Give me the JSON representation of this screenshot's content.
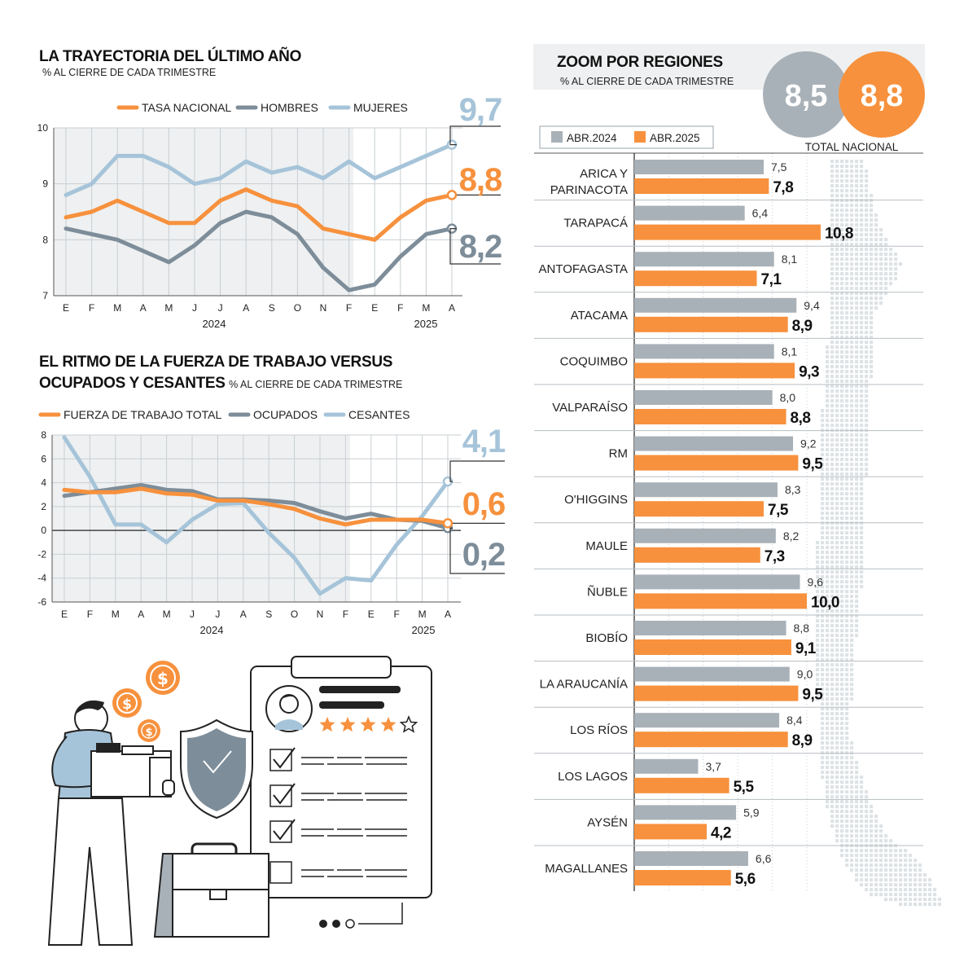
{
  "colors": {
    "orange": "#f7913d",
    "slate": "#7d8d99",
    "lightblue": "#a6c4d9",
    "gray": "#a9b1b8",
    "shade": "#eef0f1"
  },
  "chart_data": [
    {
      "type": "line",
      "title": "LA TRAYECTORIA DEL ÚLTIMO AÑO",
      "subtitle": "% AL CIERRE DE CADA TRIMESTRE",
      "categories": [
        "E",
        "F",
        "M",
        "A",
        "M",
        "J",
        "J",
        "A",
        "S",
        "O",
        "N",
        "F",
        "E",
        "F",
        "M",
        "A"
      ],
      "year_labels": [
        "2024",
        "2025"
      ],
      "ylim": [
        7,
        10
      ],
      "y_ticks": [
        "7",
        "8",
        "9",
        "10"
      ],
      "grid": true,
      "legend_position": "top",
      "series": [
        {
          "name": "TASA NACIONAL",
          "color": "#f7913d",
          "values": [
            8.4,
            8.5,
            8.7,
            8.5,
            8.3,
            8.3,
            8.7,
            8.9,
            8.7,
            8.6,
            8.2,
            8.1,
            8.0,
            8.4,
            8.7,
            8.8
          ],
          "end_label": "8,8"
        },
        {
          "name": "HOMBRES",
          "color": "#7d8d99",
          "values": [
            8.2,
            8.1,
            8.0,
            7.8,
            7.6,
            7.9,
            8.3,
            8.5,
            8.4,
            8.1,
            7.5,
            7.1,
            7.2,
            7.7,
            8.1,
            8.2
          ],
          "end_label": "8,2"
        },
        {
          "name": "MUJERES",
          "color": "#a6c4d9",
          "values": [
            8.8,
            9.0,
            9.5,
            9.5,
            9.3,
            9.0,
            9.1,
            9.4,
            9.2,
            9.3,
            9.1,
            9.4,
            9.1,
            9.3,
            9.5,
            9.7
          ],
          "end_label": "9,7"
        }
      ]
    },
    {
      "type": "line",
      "title_line1": "EL RITMO DE LA FUERZA DE TRABAJO VERSUS",
      "title_line2": "OCUPADOS Y CESANTES",
      "subtitle": "% AL CIERRE DE CADA TRIMESTRE",
      "categories": [
        "E",
        "F",
        "M",
        "A",
        "M",
        "J",
        "J",
        "A",
        "S",
        "O",
        "N",
        "F",
        "E",
        "F",
        "M",
        "A"
      ],
      "year_labels": [
        "2024",
        "2025"
      ],
      "ylim": [
        -6,
        8
      ],
      "y_ticks": [
        "-6",
        "-4",
        "-2",
        "0",
        "2",
        "4",
        "6",
        "8"
      ],
      "grid": true,
      "legend_position": "top",
      "series": [
        {
          "name": "FUERZA DE TRABAJO TOTAL",
          "color": "#f7913d",
          "values": [
            3.4,
            3.2,
            3.2,
            3.5,
            3.1,
            3.0,
            2.5,
            2.5,
            2.2,
            1.8,
            1.0,
            0.5,
            0.9,
            0.9,
            0.9,
            0.6
          ],
          "end_label": "0,6"
        },
        {
          "name": "OCUPADOS",
          "color": "#7d8d99",
          "values": [
            2.9,
            3.2,
            3.5,
            3.8,
            3.4,
            3.3,
            2.6,
            2.6,
            2.5,
            2.3,
            1.6,
            1.0,
            1.4,
            0.9,
            0.8,
            0.2
          ],
          "end_label": "0,2"
        },
        {
          "name": "CESANTES",
          "color": "#a6c4d9",
          "values": [
            7.8,
            4.5,
            0.5,
            0.5,
            -1.0,
            0.9,
            2.2,
            2.3,
            -0.2,
            -2.3,
            -5.3,
            -4.0,
            -4.2,
            -1.2,
            1.2,
            4.1
          ],
          "end_label": "4,1"
        }
      ]
    },
    {
      "type": "bar",
      "title": "ZOOM POR REGIONES",
      "subtitle": "% AL CIERRE DE CADA TRIMESTRE",
      "total_label": "TOTAL NACIONAL",
      "total_2024": "8,5",
      "total_2025": "8,8",
      "legend_position": "top-left",
      "series": [
        {
          "name": "ABR.2024",
          "color": "#a9b1b8"
        },
        {
          "name": "ABR.2025",
          "color": "#f7913d"
        }
      ],
      "categories": [
        "ARICA Y PARINACOTA",
        "TARAPACÁ",
        "ANTOFAGASTA",
        "ATACAMA",
        "COQUIMBO",
        "VALPARAÍSO",
        "RM",
        "O'HIGGINS",
        "MAULE",
        "ÑUBLE",
        "BIOBÍO",
        "LA ARAUCANÍA",
        "LOS RÍOS",
        "LOS LAGOS",
        "AYSÉN",
        "MAGALLANES"
      ],
      "values_2024": [
        7.5,
        6.4,
        8.1,
        9.4,
        8.1,
        8.0,
        9.2,
        8.3,
        8.2,
        9.6,
        8.8,
        9.0,
        8.4,
        3.7,
        5.9,
        6.6
      ],
      "values_2025": [
        7.8,
        10.8,
        7.1,
        8.9,
        9.3,
        8.8,
        9.5,
        7.5,
        7.3,
        10.0,
        9.1,
        9.5,
        8.9,
        5.5,
        4.2,
        5.6
      ],
      "labels_2024": [
        "7,5",
        "6,4",
        "8,1",
        "9,4",
        "8,1",
        "8,0",
        "9,2",
        "8,3",
        "8,2",
        "9,6",
        "8,8",
        "9,0",
        "8,4",
        "3,7",
        "5,9",
        "6,6"
      ],
      "labels_2025": [
        "7,8",
        "10,8",
        "7,1",
        "8,9",
        "9,3",
        "8,8",
        "9,5",
        "7,5",
        "7,3",
        "10,0",
        "9,1",
        "9,5",
        "8,9",
        "5,5",
        "4,2",
        "5,6"
      ]
    }
  ]
}
